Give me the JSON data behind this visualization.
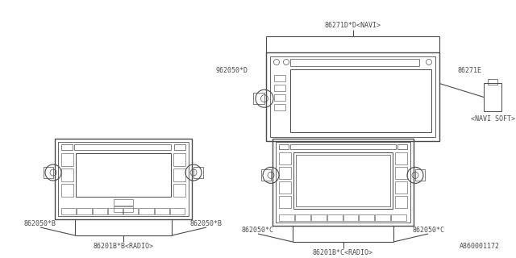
{
  "bg_color": "#ffffff",
  "line_color": "#4a4a4a",
  "text_color": "#4a4a4a",
  "fig_width": 6.4,
  "fig_height": 3.2,
  "dpi": 100,
  "watermark": "A860001172",
  "navi_label_top": "86271D*D<NAVI>",
  "navi_label_left": "962050*D",
  "navi_label_right": "86271E",
  "navi_label_soft": "<NAVI SOFT>",
  "radio_b_label_bottom": "86201B*B<RADIO>",
  "radio_b_label_left": "862050*B",
  "radio_b_label_right": "862050*B",
  "radio_c_label_bottom": "86201B*C<RADIO>",
  "radio_c_label_left": "862050*C",
  "radio_c_label_right": "862050*C"
}
